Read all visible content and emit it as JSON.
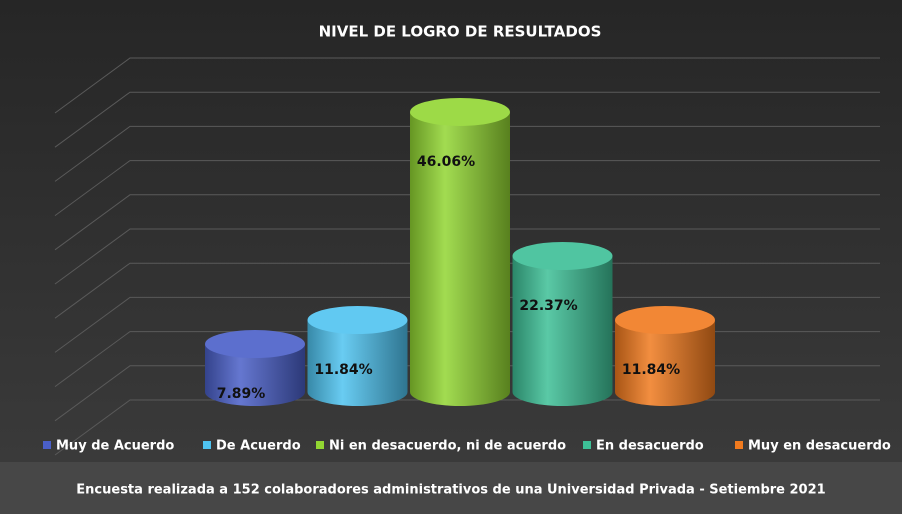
{
  "chart_data": {
    "type": "bar3d",
    "title": "NIVEL DE LOGRO DE RESULTADOS",
    "subtitle": "Encuesta realizada a 152 colaboradores administrativos de una Universidad Privada - Setiembre 2021",
    "categories": [
      "Muy de Acuerdo",
      "De Acuerdo",
      "Ni en desacuerdo, ni de acuerdo",
      "En desacuerdo",
      "Muy en desacuerdo"
    ],
    "values": [
      7.89,
      11.84,
      46.06,
      22.37,
      11.84
    ],
    "value_labels": [
      "7.89%",
      "11.84%",
      "46.06%",
      "22.37%",
      "11.84%"
    ],
    "colors": [
      "#4a5fc8",
      "#4fc3f0",
      "#92d632",
      "#3dbf96",
      "#f07a1e"
    ],
    "ylim": [
      0,
      50
    ],
    "yticks": [
      0,
      5,
      10,
      15,
      20,
      25,
      30,
      35,
      40,
      45,
      50
    ],
    "grid": true,
    "legend": "bottom"
  }
}
